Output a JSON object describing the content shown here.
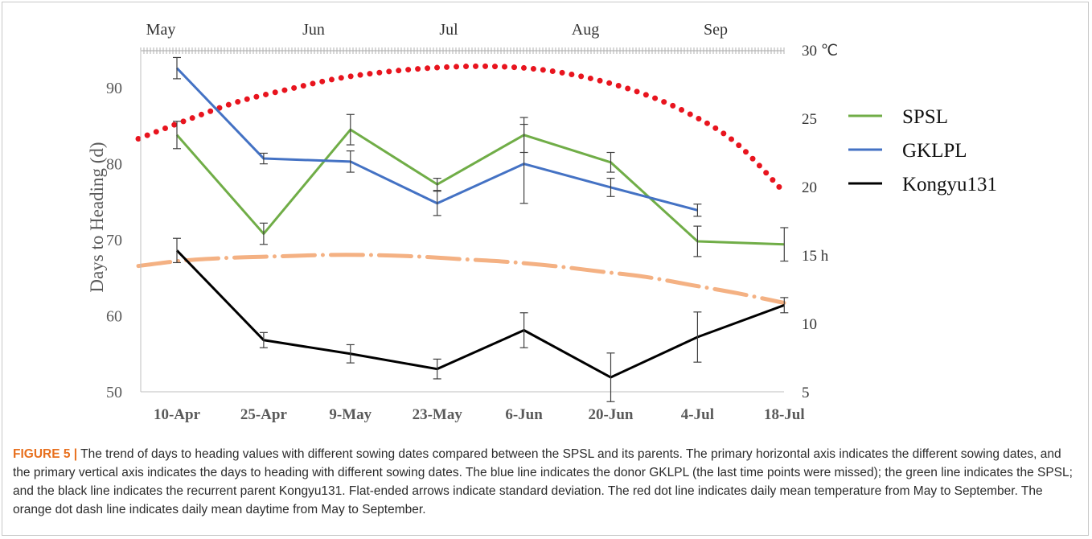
{
  "chart_data": {
    "type": "line",
    "categories": [
      "10-Apr",
      "25-Apr",
      "9-May",
      "23-May",
      "6-Jun",
      "20-Jun",
      "4-Jul",
      "18-Jul"
    ],
    "ylabel": "Days to Heading (d)",
    "ylim": [
      50,
      95
    ],
    "yticks": [
      50,
      60,
      70,
      80,
      90
    ],
    "series": [
      {
        "name": "SPSL",
        "color": "#70ad47",
        "values": [
          83.8,
          70.8,
          84.5,
          77.3,
          83.8,
          80.2,
          69.8,
          69.4
        ],
        "sd": [
          1.8,
          1.4,
          2.0,
          0.8,
          2.3,
          1.3,
          2.0,
          2.2
        ]
      },
      {
        "name": "GKLPL",
        "color": "#4472c4",
        "values": [
          92.6,
          80.7,
          80.3,
          74.8,
          80.0,
          76.9,
          73.9,
          null
        ],
        "sd": [
          1.4,
          0.7,
          1.4,
          1.6,
          5.2,
          1.2,
          0.8,
          null
        ]
      },
      {
        "name": "Kongyu131",
        "color": "#000000",
        "values": [
          68.6,
          56.8,
          55.0,
          53.0,
          58.1,
          51.9,
          57.2,
          61.4
        ],
        "sd": [
          1.6,
          1.0,
          1.2,
          1.3,
          2.3,
          3.2,
          3.3,
          1.0
        ]
      }
    ],
    "secondary_axis": {
      "ticks": [
        5,
        10,
        15,
        20,
        25,
        30
      ],
      "tick_labels": [
        "5",
        "10",
        "15 h",
        "20",
        "25",
        "30 ℃"
      ],
      "range": [
        5,
        30
      ]
    },
    "month_axis": {
      "labels": [
        "May",
        "Jun",
        "Jul",
        "Aug",
        "Sep"
      ]
    },
    "overlays": [
      {
        "kind": "temperature",
        "style": "red dotted",
        "color": "#e8141e",
        "y2": [
          23.5,
          24.9,
          26.2,
          27.1,
          27.9,
          28.4,
          28.7,
          28.8,
          28.6,
          28.0,
          27.0,
          25.5,
          23.3,
          19.6
        ]
      },
      {
        "kind": "daytime",
        "style": "orange dot-dash",
        "color": "#f4b183",
        "y2": [
          14.2,
          14.6,
          14.8,
          14.9,
          15.0,
          15.0,
          14.9,
          14.7,
          14.5,
          14.2,
          13.8,
          13.4,
          12.8,
          12.2,
          11.5
        ]
      }
    ],
    "legend": "right"
  },
  "caption": {
    "label": "FIGURE 5 |",
    "text": "The trend of days to heading values with different sowing dates compared between the SPSL and its parents. The primary horizontal axis indicates the different sowing dates, and the primary vertical axis indicates the days to heading with different sowing dates. The blue line indicates the donor GKLPL (the last time points were missed); the green line indicates the SPSL; and the black line indicates the recurrent parent Kongyu131. Flat-ended arrows indicate standard deviation. The red dot line indicates daily mean temperature from May to September. The orange dot dash line indicates daily mean daytime from May to September."
  }
}
